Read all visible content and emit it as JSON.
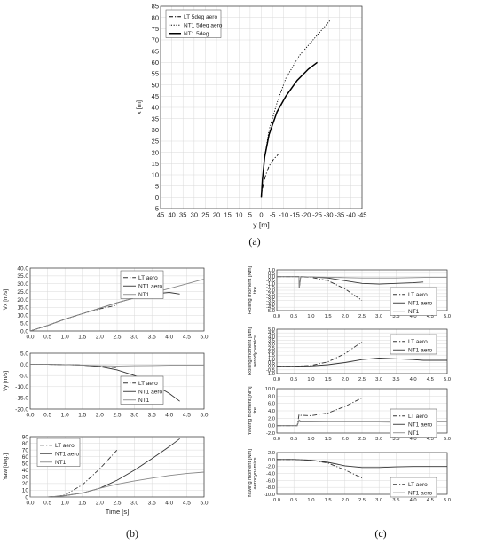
{
  "panel_letters": {
    "a": "(a)",
    "b": "(b)",
    "c": "(c)"
  },
  "chart_data": [
    {
      "id": "a",
      "type": "line",
      "xlabel": "y [m]",
      "ylabel": "x [m]",
      "xlim": [
        45,
        -45
      ],
      "ylim": [
        -5,
        85
      ],
      "reversed_x": true,
      "grid": true,
      "legend": "top-left",
      "xticks": [
        "45",
        "40",
        "35",
        "30",
        "25",
        "20",
        "15",
        "10",
        "5",
        "0",
        "-5",
        "-10",
        "-15",
        "-20",
        "-25",
        "-30",
        "-35",
        "-40",
        "-45"
      ],
      "yticks": [
        "-5",
        "0",
        "5",
        "10",
        "15",
        "20",
        "25",
        "30",
        "35",
        "40",
        "45",
        "50",
        "55",
        "60",
        "65",
        "70",
        "75",
        "80",
        "85"
      ],
      "series": [
        {
          "name": "LT 5deg aero",
          "dash": "dashdot",
          "x": [
            0,
            -0.3,
            -1,
            -2,
            -3.5,
            -5.5,
            -7.5
          ],
          "y": [
            0,
            3,
            6,
            10,
            14,
            17,
            19
          ]
        },
        {
          "name": "NT1 5deg aero",
          "dash": "dot",
          "x": [
            0,
            -0.5,
            -1.5,
            -3.5,
            -7,
            -11,
            -17,
            -24,
            -31
          ],
          "y": [
            0,
            8,
            18,
            30,
            42,
            53,
            63,
            71,
            79
          ]
        },
        {
          "name": "NT1 5deg",
          "dash": "solid",
          "x": [
            0,
            -0.5,
            -1.5,
            -3.5,
            -7,
            -11,
            -16,
            -21,
            -25
          ],
          "y": [
            0,
            8,
            18,
            28,
            38,
            45,
            52,
            57,
            60
          ]
        }
      ]
    },
    {
      "id": "b1",
      "type": "line",
      "ylabel": "Vx [m/s]",
      "xlim": [
        0,
        5
      ],
      "ylim": [
        0,
        40
      ],
      "grid": true,
      "legend": "top-right",
      "xticks": [
        "0.0",
        "0.5",
        "1.0",
        "1.5",
        "2.0",
        "2.5",
        "3.0",
        "3.5",
        "4.0",
        "4.5",
        "5.0"
      ],
      "yticks": [
        "0.0",
        "5.0",
        "10.0",
        "15.0",
        "20.0",
        "25.0",
        "30.0",
        "35.0",
        "40.0"
      ],
      "series": [
        {
          "name": "LT aero",
          "dash": "dashdot",
          "x": [
            0,
            0.5,
            1,
            1.5,
            2,
            2.5
          ],
          "y": [
            0,
            3.5,
            7.5,
            11,
            14,
            16.5
          ]
        },
        {
          "name": "NT1 aero",
          "dash": "solid",
          "x": [
            0,
            0.5,
            1,
            1.5,
            2,
            2.5,
            3,
            3.5,
            4,
            4.3
          ],
          "y": [
            0,
            3.5,
            7.5,
            11,
            14.5,
            18,
            21,
            23.5,
            24.5,
            23.5
          ]
        },
        {
          "name": "NT1",
          "dash": "solid",
          "x": [
            0,
            0.5,
            1,
            1.5,
            2,
            2.5,
            3,
            3.5,
            4,
            4.5,
            5
          ],
          "y": [
            0,
            3.5,
            7.5,
            11,
            14.5,
            18,
            21,
            24,
            27,
            30,
            33
          ]
        }
      ]
    },
    {
      "id": "b2",
      "type": "line",
      "ylabel": "Vy [m/s]",
      "xlim": [
        0,
        5
      ],
      "ylim": [
        -20,
        5
      ],
      "grid": true,
      "legend": "right",
      "xticks": [
        "0.0",
        "0.5",
        "1.0",
        "1.5",
        "2.0",
        "2.5",
        "3.0",
        "3.5",
        "4.0",
        "4.5",
        "5.0"
      ],
      "yticks": [
        "-20.0",
        "-15.0",
        "-10.0",
        "-5.0",
        "0.0",
        "5.0"
      ],
      "series": [
        {
          "name": "LT aero",
          "dash": "dashdot",
          "x": [
            0,
            0.5,
            1,
            1.5,
            2,
            2.5
          ],
          "y": [
            0,
            0,
            -0.1,
            -0.3,
            -0.8,
            -1.5
          ]
        },
        {
          "name": "NT1 aero",
          "dash": "solid",
          "x": [
            0,
            0.5,
            1,
            1.5,
            2,
            2.5,
            3,
            3.5,
            4,
            4.3
          ],
          "y": [
            0,
            0,
            -0.1,
            -0.3,
            -1,
            -2.5,
            -5,
            -8.5,
            -13,
            -16.5
          ]
        },
        {
          "name": "NT1",
          "dash": "solid",
          "x": [
            0,
            0.5,
            1,
            1.5,
            2,
            2.5,
            3,
            3.5,
            4,
            4.5,
            5
          ],
          "y": [
            0,
            0,
            -0.1,
            -0.3,
            -0.6,
            -0.7,
            -0.6,
            -0.5,
            -0.4,
            -0.3,
            -0.3
          ]
        }
      ]
    },
    {
      "id": "b3",
      "type": "line",
      "ylabel": "Yaw [deg.]",
      "xlabel": "Time [s]",
      "xlim": [
        0,
        5
      ],
      "ylim": [
        0,
        90
      ],
      "grid": true,
      "legend": "top-left",
      "xticks": [
        "0.0",
        "0.5",
        "1.0",
        "1.5",
        "2.0",
        "2.5",
        "3.0",
        "3.5",
        "4.0",
        "4.5",
        "5.0"
      ],
      "yticks": [
        "0",
        "10",
        "20",
        "30",
        "40",
        "50",
        "60",
        "70",
        "80",
        "90"
      ],
      "series": [
        {
          "name": "LT aero",
          "dash": "dashdot",
          "x": [
            0,
            0.5,
            0.8,
            1,
            1.5,
            2,
            2.5
          ],
          "y": [
            0,
            0,
            1,
            3,
            18,
            42,
            70
          ]
        },
        {
          "name": "NT1 aero",
          "dash": "solid",
          "x": [
            0,
            0.5,
            0.8,
            1,
            1.5,
            2,
            2.5,
            3,
            3.5,
            4,
            4.3
          ],
          "y": [
            0,
            0,
            1,
            2,
            6,
            13,
            25,
            40,
            57,
            75,
            87
          ]
        },
        {
          "name": "NT1",
          "dash": "solid",
          "x": [
            0,
            0.5,
            0.8,
            1,
            1.5,
            2,
            2.5,
            3,
            3.5,
            4,
            4.5,
            5
          ],
          "y": [
            0,
            0,
            1,
            2,
            6,
            13,
            19,
            24,
            28,
            32,
            35,
            37
          ]
        }
      ]
    },
    {
      "id": "c1",
      "type": "line",
      "ylabel": "Rolling moment [Nm] tire",
      "xlim": [
        0,
        5
      ],
      "ylim": [
        -5,
        1
      ],
      "grid": true,
      "legend": "right",
      "xticks": [
        "0.0",
        "0.5",
        "1.0",
        "1.5",
        "2.0",
        "2.5",
        "3.0",
        "3.5",
        "4.0",
        "4.5",
        "5.0"
      ],
      "yticks": [
        "-5.0",
        "-4.5",
        "-4.0",
        "-3.5",
        "-3.0",
        "-2.5",
        "-2.0",
        "-1.5",
        "-1.0",
        "-0.5",
        "0.0",
        "0.5",
        "1.0"
      ],
      "series": [
        {
          "name": "LT aero",
          "dash": "dashdot",
          "x": [
            0,
            0.5,
            0.65,
            1,
            1.5,
            2,
            2.5
          ],
          "y": [
            0,
            0,
            0,
            -0.1,
            -0.6,
            -1.8,
            -3.5
          ]
        },
        {
          "name": "NT1 aero",
          "dash": "solid",
          "x": [
            0,
            0.5,
            0.65,
            0.66,
            0.7,
            1,
            1.5,
            2,
            2.5,
            3,
            3.5,
            4,
            4.3
          ],
          "y": [
            0,
            0,
            0,
            -1.7,
            0,
            -0.05,
            -0.2,
            -0.6,
            -1,
            -1.1,
            -1,
            -0.9,
            -0.8
          ]
        },
        {
          "name": "NT1",
          "dash": "solid",
          "x": [
            0,
            0.5,
            0.65,
            0.66,
            0.7,
            1,
            1.5,
            2,
            2.5,
            3,
            3.5,
            4,
            4.5,
            5
          ],
          "y": [
            0,
            0,
            0,
            -1.7,
            0,
            -0.05,
            -0.1,
            -0.15,
            -0.2,
            -0.2,
            -0.2,
            -0.15,
            -0.1,
            -0.1
          ]
        }
      ]
    },
    {
      "id": "c2",
      "type": "line",
      "ylabel": "Rolling moment [Nm] aerodynamics",
      "xlim": [
        0,
        5
      ],
      "ylim": [
        -1,
        5
      ],
      "grid": true,
      "legend": "right",
      "xticks": [
        "0.0",
        "0.5",
        "1.0",
        "1.5",
        "2.0",
        "2.5",
        "3.0",
        "3.5",
        "4.0",
        "4.5",
        "5.0"
      ],
      "yticks": [
        "-1.0",
        "-0.5",
        "0.0",
        "0.5",
        "1.0",
        "1.5",
        "2.0",
        "2.5",
        "3.0",
        "3.5",
        "4.0",
        "4.5",
        "5.0"
      ],
      "series": [
        {
          "name": "LT aero",
          "dash": "dashdot",
          "x": [
            0,
            0.5,
            1,
            1.5,
            2,
            2.5
          ],
          "y": [
            0,
            0,
            0.1,
            0.6,
            1.7,
            3.3
          ]
        },
        {
          "name": "NT1 aero",
          "dash": "solid",
          "x": [
            0,
            0.5,
            1,
            1.5,
            2,
            2.5,
            3,
            3.5,
            4,
            4.3,
            4.5,
            5
          ],
          "y": [
            0,
            0,
            0.05,
            0.2,
            0.5,
            0.9,
            1.1,
            1,
            0.9,
            0.8,
            0.8,
            0.8
          ]
        }
      ]
    },
    {
      "id": "c3",
      "type": "line",
      "ylabel": "Yawing moment [Nm] tire",
      "xlim": [
        0,
        5
      ],
      "ylim": [
        -2,
        10
      ],
      "grid": true,
      "legend": "right",
      "xticks": [
        "0.0",
        "0.5",
        "1.0",
        "1.5",
        "2.0",
        "2.5",
        "3.0",
        "3.5",
        "4.0",
        "4.5",
        "5.0"
      ],
      "yticks": [
        "-2.0",
        "0.0",
        "2.0",
        "4.0",
        "6.0",
        "8.0",
        "10.0"
      ],
      "series": [
        {
          "name": "LT aero",
          "dash": "dashdot",
          "x": [
            0,
            0.6,
            0.65,
            0.7,
            1,
            1.5,
            2,
            2.5
          ],
          "y": [
            0,
            0,
            3,
            2.8,
            2.7,
            3.4,
            5.2,
            7.5
          ]
        },
        {
          "name": "NT1 aero",
          "dash": "solid",
          "x": [
            0,
            0.6,
            0.65,
            0.7,
            1,
            2,
            3,
            4,
            4.3
          ],
          "y": [
            0,
            0,
            1.5,
            1.2,
            1.2,
            1.1,
            1,
            0.9,
            0.9
          ]
        },
        {
          "name": "NT1",
          "dash": "solid",
          "x": [
            0,
            0.6,
            0.65,
            0.7,
            1,
            2,
            3,
            4,
            5
          ],
          "y": [
            0,
            0,
            1.5,
            1.2,
            1.2,
            1.2,
            1.2,
            1.2,
            1.2
          ]
        }
      ]
    },
    {
      "id": "c4",
      "type": "line",
      "ylabel": "Yawing moment [Nm] aerodynamics",
      "xlim": [
        0,
        5
      ],
      "ylim": [
        -10,
        2
      ],
      "grid": true,
      "legend": "right",
      "xticks": [
        "0.0",
        "0.5",
        "1.0",
        "1.5",
        "2.0",
        "2.5",
        "3.0",
        "3.5",
        "4.0",
        "4.5",
        "5.0"
      ],
      "yticks": [
        "-10.0",
        "-8.0",
        "-6.0",
        "-4.0",
        "-2.0",
        "0.0",
        "2.0"
      ],
      "series": [
        {
          "name": "LT aero",
          "dash": "dashdot",
          "x": [
            0,
            0.5,
            1,
            1.5,
            2,
            2.5
          ],
          "y": [
            0,
            0,
            -0.2,
            -1,
            -3,
            -5.3
          ]
        },
        {
          "name": "NT1 aero",
          "dash": "solid",
          "x": [
            0,
            0.5,
            1,
            1.5,
            2,
            2.5,
            3,
            3.5,
            4,
            4.3,
            5
          ],
          "y": [
            0,
            0,
            -0.2,
            -0.8,
            -1.8,
            -2.3,
            -2.3,
            -2.1,
            -2,
            -2,
            -2
          ]
        }
      ]
    }
  ]
}
